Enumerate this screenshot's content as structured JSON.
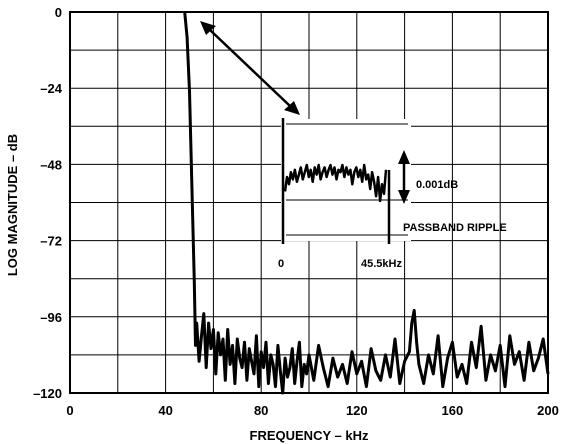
{
  "chart_data": {
    "type": "line",
    "title": "",
    "xlabel": "FREQUENCY – kHz",
    "ylabel": "LOG MAGNITUDE – dB",
    "xlim": [
      0,
      200
    ],
    "ylim": [
      -120,
      0
    ],
    "grid": true,
    "x_ticks": [
      0,
      40,
      80,
      120,
      160,
      200
    ],
    "x_tick_labels": [
      "0",
      "40",
      "80",
      "120",
      "160",
      "200"
    ],
    "y_ticks": [
      0,
      -24,
      -48,
      -72,
      -96,
      -120
    ],
    "y_tick_labels": [
      "0",
      "–24",
      "–48",
      "–72",
      "–96",
      "–120"
    ],
    "series": [
      {
        "x": [
          48,
          49,
          50,
          51,
          52,
          52.5,
          53,
          54,
          55,
          56,
          57,
          58,
          59,
          60,
          61,
          62,
          63,
          64,
          65,
          66,
          67,
          68,
          69,
          70,
          71,
          72,
          73,
          74,
          75,
          76,
          77,
          78,
          79,
          80,
          81,
          82,
          83,
          84,
          85,
          86,
          87,
          88,
          89,
          90,
          91,
          92,
          93,
          94,
          95,
          96,
          97,
          98,
          99,
          100,
          102,
          104,
          106,
          108,
          110,
          112,
          114,
          116,
          118,
          120,
          122,
          124,
          126,
          128,
          130,
          132,
          134,
          136,
          138,
          140,
          142,
          143,
          144,
          145,
          146,
          148,
          150,
          152,
          154,
          156,
          158,
          160,
          162,
          164,
          166,
          168,
          170,
          172,
          174,
          176,
          178,
          180,
          182,
          184,
          186,
          188,
          190,
          192,
          194,
          196,
          198,
          200
        ],
        "y": [
          0,
          -8,
          -25,
          -55,
          -85,
          -105,
          -98,
          -110,
          -102,
          -95,
          -112,
          -98,
          -106,
          -100,
          -114,
          -101,
          -108,
          -103,
          -116,
          -100,
          -111,
          -105,
          -117,
          -103,
          -109,
          -112,
          -104,
          -116,
          -106,
          -110,
          -114,
          -102,
          -118,
          -107,
          -112,
          -104,
          -117,
          -108,
          -111,
          -118,
          -105,
          -113,
          -121,
          -109,
          -115,
          -112,
          -106,
          -117,
          -110,
          -104,
          -118,
          -111,
          -114,
          -108,
          -116,
          -105,
          -112,
          -118,
          -109,
          -115,
          -111,
          -117,
          -107,
          -114,
          -110,
          -118,
          -106,
          -113,
          -116,
          -108,
          -115,
          -103,
          -117,
          -110,
          -107,
          -98,
          -94,
          -104,
          -111,
          -117,
          -108,
          -114,
          -102,
          -118,
          -109,
          -104,
          -115,
          -111,
          -117,
          -104,
          -112,
          -99,
          -116,
          -108,
          -113,
          -105,
          -118,
          -102,
          -111,
          -107,
          -116,
          -104,
          -113,
          -109,
          -103,
          -114
        ]
      }
    ],
    "inset": {
      "label_start": "0",
      "label_end": "45.5kHz",
      "ripple_value": "0.001dB",
      "caption": "PASSBAND RIPPLE",
      "ripple_trace": [
        -0.0002,
        0.0004,
        0.0001,
        0.0006,
        0.0003,
        0.0007,
        0.0002,
        0.0005,
        0.0008,
        0.0003,
        0.0006,
        0.0009,
        0.0004,
        0.0007,
        0.0002,
        0.0008,
        0.0005,
        0.0009,
        0.0003,
        0.0006,
        0.0008,
        0.0004,
        0.0007,
        0.0009,
        0.0005,
        0.0008,
        0.0003,
        0.0007,
        0.0006,
        0.0009,
        0.0004,
        0.0008,
        0.0005,
        0.0007,
        0.0001,
        0.0006,
        0.0008,
        0.0004,
        0.0007,
        0.0002,
        0.0009,
        0.0003,
        0.0005,
        -0.0001,
        0.0006,
        0.0002,
        -0.0004,
        0.0004,
        -0.0006,
        0.0001,
        -0.0003,
        0.0007
      ]
    }
  }
}
